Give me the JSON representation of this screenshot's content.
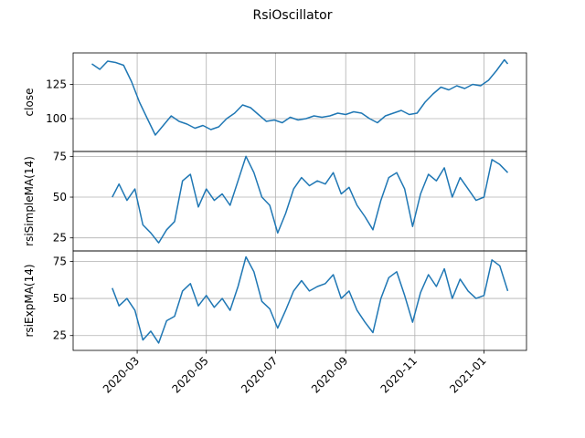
{
  "chart_data": {
    "type": "line",
    "title": "RsiOscillator",
    "x_start_date": "2020-01-21",
    "x_end_date": "2021-01-22",
    "x_ticks": [
      "2020-03",
      "2020-05",
      "2020-07",
      "2020-09",
      "2020-11",
      "2021-01"
    ],
    "x_tick_dates": [
      "2020-03-01",
      "2020-05-01",
      "2020-07-01",
      "2020-09-01",
      "2020-11-01",
      "2021-01-01"
    ],
    "line_color": "#1f77b4",
    "grid": true,
    "panels": [
      {
        "ylabel": "close",
        "ylim": [
          76,
          148
        ],
        "yticks": [
          100,
          125
        ],
        "series": {
          "dates": [
            "2020-01-21",
            "2020-01-28",
            "2020-02-04",
            "2020-02-11",
            "2020-02-18",
            "2020-02-25",
            "2020-03-03",
            "2020-03-10",
            "2020-03-17",
            "2020-03-24",
            "2020-03-31",
            "2020-04-07",
            "2020-04-14",
            "2020-04-21",
            "2020-04-28",
            "2020-05-05",
            "2020-05-12",
            "2020-05-19",
            "2020-05-26",
            "2020-06-02",
            "2020-06-09",
            "2020-06-16",
            "2020-06-23",
            "2020-06-30",
            "2020-07-07",
            "2020-07-14",
            "2020-07-21",
            "2020-07-28",
            "2020-08-04",
            "2020-08-11",
            "2020-08-18",
            "2020-08-25",
            "2020-09-01",
            "2020-09-08",
            "2020-09-15",
            "2020-09-22",
            "2020-09-29",
            "2020-10-06",
            "2020-10-13",
            "2020-10-20",
            "2020-10-27",
            "2020-11-03",
            "2020-11-10",
            "2020-11-17",
            "2020-11-24",
            "2020-12-01",
            "2020-12-08",
            "2020-12-15",
            "2020-12-22",
            "2020-12-29",
            "2021-01-05",
            "2021-01-12",
            "2021-01-19",
            "2021-01-22"
          ],
          "values": [
            140,
            136,
            142,
            141,
            139,
            127,
            112,
            100,
            88,
            95,
            102,
            98,
            96,
            93,
            95,
            92,
            94,
            100,
            104,
            110,
            108,
            103,
            98,
            99,
            97,
            101,
            99,
            100,
            102,
            101,
            102,
            104,
            103,
            105,
            104,
            100,
            97,
            102,
            104,
            106,
            103,
            104,
            112,
            118,
            123,
            121,
            124,
            122,
            125,
            124,
            128,
            135,
            143,
            140
          ]
        }
      },
      {
        "ylabel": "rsiSimpleMA(14)",
        "ylim": [
          17,
          78
        ],
        "yticks": [
          25,
          50,
          75
        ],
        "series": {
          "dates": [
            "2020-02-08",
            "2020-02-14",
            "2020-02-21",
            "2020-02-28",
            "2020-03-06",
            "2020-03-13",
            "2020-03-20",
            "2020-03-27",
            "2020-04-03",
            "2020-04-10",
            "2020-04-17",
            "2020-04-24",
            "2020-05-01",
            "2020-05-08",
            "2020-05-15",
            "2020-05-22",
            "2020-05-29",
            "2020-06-05",
            "2020-06-12",
            "2020-06-19",
            "2020-06-26",
            "2020-07-03",
            "2020-07-10",
            "2020-07-17",
            "2020-07-24",
            "2020-07-31",
            "2020-08-07",
            "2020-08-14",
            "2020-08-21",
            "2020-08-28",
            "2020-09-04",
            "2020-09-11",
            "2020-09-18",
            "2020-09-25",
            "2020-10-02",
            "2020-10-09",
            "2020-10-16",
            "2020-10-23",
            "2020-10-30",
            "2020-11-06",
            "2020-11-13",
            "2020-11-20",
            "2020-11-27",
            "2020-12-04",
            "2020-12-11",
            "2020-12-18",
            "2020-12-25",
            "2021-01-01",
            "2021-01-08",
            "2021-01-15",
            "2021-01-22"
          ],
          "values": [
            50,
            58,
            48,
            55,
            33,
            28,
            22,
            30,
            35,
            60,
            64,
            44,
            55,
            48,
            52,
            45,
            60,
            75,
            65,
            50,
            45,
            28,
            40,
            55,
            62,
            57,
            60,
            58,
            65,
            52,
            56,
            45,
            38,
            30,
            48,
            62,
            65,
            55,
            32,
            52,
            64,
            60,
            68,
            50,
            62,
            55,
            48,
            50,
            73,
            70,
            65
          ]
        }
      },
      {
        "ylabel": "rsiExpMA(14)",
        "ylim": [
          15,
          82
        ],
        "yticks": [
          25,
          50,
          75
        ],
        "series": {
          "dates": [
            "2020-02-08",
            "2020-02-14",
            "2020-02-21",
            "2020-02-28",
            "2020-03-06",
            "2020-03-13",
            "2020-03-20",
            "2020-03-27",
            "2020-04-03",
            "2020-04-10",
            "2020-04-17",
            "2020-04-24",
            "2020-05-01",
            "2020-05-08",
            "2020-05-15",
            "2020-05-22",
            "2020-05-29",
            "2020-06-05",
            "2020-06-12",
            "2020-06-19",
            "2020-06-26",
            "2020-07-03",
            "2020-07-10",
            "2020-07-17",
            "2020-07-24",
            "2020-07-31",
            "2020-08-07",
            "2020-08-14",
            "2020-08-21",
            "2020-08-28",
            "2020-09-04",
            "2020-09-11",
            "2020-09-18",
            "2020-09-25",
            "2020-10-02",
            "2020-10-09",
            "2020-10-16",
            "2020-10-23",
            "2020-10-30",
            "2020-11-06",
            "2020-11-13",
            "2020-11-20",
            "2020-11-27",
            "2020-12-04",
            "2020-12-11",
            "2020-12-18",
            "2020-12-25",
            "2021-01-01",
            "2021-01-08",
            "2021-01-15",
            "2021-01-22"
          ],
          "values": [
            57,
            45,
            50,
            42,
            22,
            28,
            20,
            35,
            38,
            55,
            60,
            45,
            52,
            44,
            50,
            42,
            58,
            78,
            68,
            48,
            43,
            30,
            42,
            55,
            62,
            55,
            58,
            60,
            66,
            50,
            55,
            42,
            34,
            27,
            50,
            64,
            68,
            52,
            34,
            54,
            66,
            58,
            70,
            50,
            63,
            55,
            50,
            52,
            76,
            72,
            55
          ]
        }
      }
    ]
  }
}
